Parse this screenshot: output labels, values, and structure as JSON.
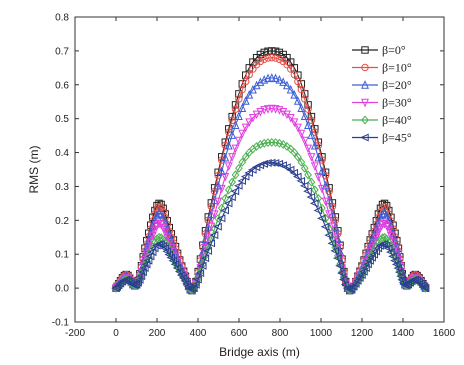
{
  "chart_data": {
    "type": "line",
    "xlabel": "Bridge axis (m)",
    "ylabel": "RMS (m)",
    "xlim": [
      -200,
      1600
    ],
    "ylim": [
      -0.1,
      0.8
    ],
    "xticks": [
      -200,
      0,
      200,
      400,
      600,
      800,
      1000,
      1200,
      1400,
      1600
    ],
    "yticks": [
      -0.1,
      0.0,
      0.1,
      0.2,
      0.3,
      0.4,
      0.5,
      0.6,
      0.7,
      0.8
    ],
    "legend_position": "top-right",
    "grid": false,
    "series": [
      {
        "name": "β=0°",
        "color": "#222222",
        "marker": "square",
        "x": [
          0,
          50,
          100,
          150,
          210,
          270,
          330,
          380,
          450,
          550,
          650,
          760,
          870,
          970,
          1070,
          1130,
          1190,
          1250,
          1310,
          1370,
          1410,
          1460,
          1510
        ],
        "y": [
          0.0,
          0.04,
          0.01,
          0.14,
          0.25,
          0.16,
          0.05,
          0.0,
          0.21,
          0.47,
          0.65,
          0.7,
          0.65,
          0.47,
          0.21,
          0.0,
          0.05,
          0.16,
          0.25,
          0.14,
          0.01,
          0.04,
          0.0
        ]
      },
      {
        "name": "β=10°",
        "color": "#e8514a",
        "marker": "circle",
        "x": [
          0,
          50,
          100,
          150,
          210,
          270,
          330,
          380,
          450,
          550,
          650,
          760,
          870,
          970,
          1070,
          1130,
          1190,
          1250,
          1310,
          1370,
          1410,
          1460,
          1510
        ],
        "y": [
          0.0,
          0.04,
          0.01,
          0.13,
          0.24,
          0.15,
          0.05,
          0.0,
          0.2,
          0.46,
          0.63,
          0.68,
          0.63,
          0.46,
          0.2,
          0.0,
          0.05,
          0.15,
          0.24,
          0.13,
          0.01,
          0.04,
          0.0
        ]
      },
      {
        "name": "β=20°",
        "color": "#3f5fd6",
        "marker": "triangle-up",
        "x": [
          0,
          50,
          100,
          150,
          210,
          270,
          330,
          380,
          450,
          550,
          650,
          760,
          870,
          970,
          1070,
          1130,
          1190,
          1250,
          1310,
          1370,
          1410,
          1460,
          1510
        ],
        "y": [
          0.0,
          0.035,
          0.01,
          0.12,
          0.22,
          0.14,
          0.045,
          0.0,
          0.18,
          0.42,
          0.57,
          0.62,
          0.57,
          0.42,
          0.18,
          0.0,
          0.045,
          0.14,
          0.22,
          0.12,
          0.01,
          0.035,
          0.0
        ]
      },
      {
        "name": "β=30°",
        "color": "#e041e0",
        "marker": "triangle-down",
        "x": [
          0,
          50,
          100,
          150,
          210,
          270,
          330,
          380,
          450,
          550,
          650,
          760,
          870,
          970,
          1070,
          1130,
          1190,
          1250,
          1310,
          1370,
          1410,
          1460,
          1510
        ],
        "y": [
          0.0,
          0.03,
          0.01,
          0.1,
          0.19,
          0.12,
          0.04,
          0.0,
          0.15,
          0.36,
          0.49,
          0.53,
          0.49,
          0.36,
          0.15,
          0.0,
          0.04,
          0.12,
          0.19,
          0.1,
          0.01,
          0.03,
          0.0
        ]
      },
      {
        "name": "β=40°",
        "color": "#4caf50",
        "marker": "diamond",
        "x": [
          0,
          50,
          100,
          150,
          210,
          270,
          330,
          380,
          450,
          550,
          650,
          760,
          870,
          970,
          1070,
          1130,
          1190,
          1250,
          1310,
          1370,
          1410,
          1460,
          1510
        ],
        "y": [
          0.0,
          0.025,
          0.01,
          0.08,
          0.15,
          0.1,
          0.03,
          0.0,
          0.12,
          0.29,
          0.4,
          0.43,
          0.4,
          0.29,
          0.12,
          0.0,
          0.03,
          0.1,
          0.15,
          0.08,
          0.01,
          0.025,
          0.0
        ]
      },
      {
        "name": "β=45°",
        "color": "#2b3f8f",
        "marker": "triangle-left",
        "x": [
          0,
          50,
          100,
          150,
          210,
          270,
          330,
          380,
          450,
          550,
          650,
          760,
          870,
          970,
          1070,
          1130,
          1190,
          1250,
          1310,
          1370,
          1410,
          1460,
          1510
        ],
        "y": [
          0.0,
          0.025,
          0.01,
          0.07,
          0.13,
          0.09,
          0.03,
          0.0,
          0.11,
          0.25,
          0.34,
          0.37,
          0.34,
          0.25,
          0.11,
          0.0,
          0.03,
          0.09,
          0.13,
          0.07,
          0.01,
          0.025,
          0.0
        ]
      }
    ]
  }
}
